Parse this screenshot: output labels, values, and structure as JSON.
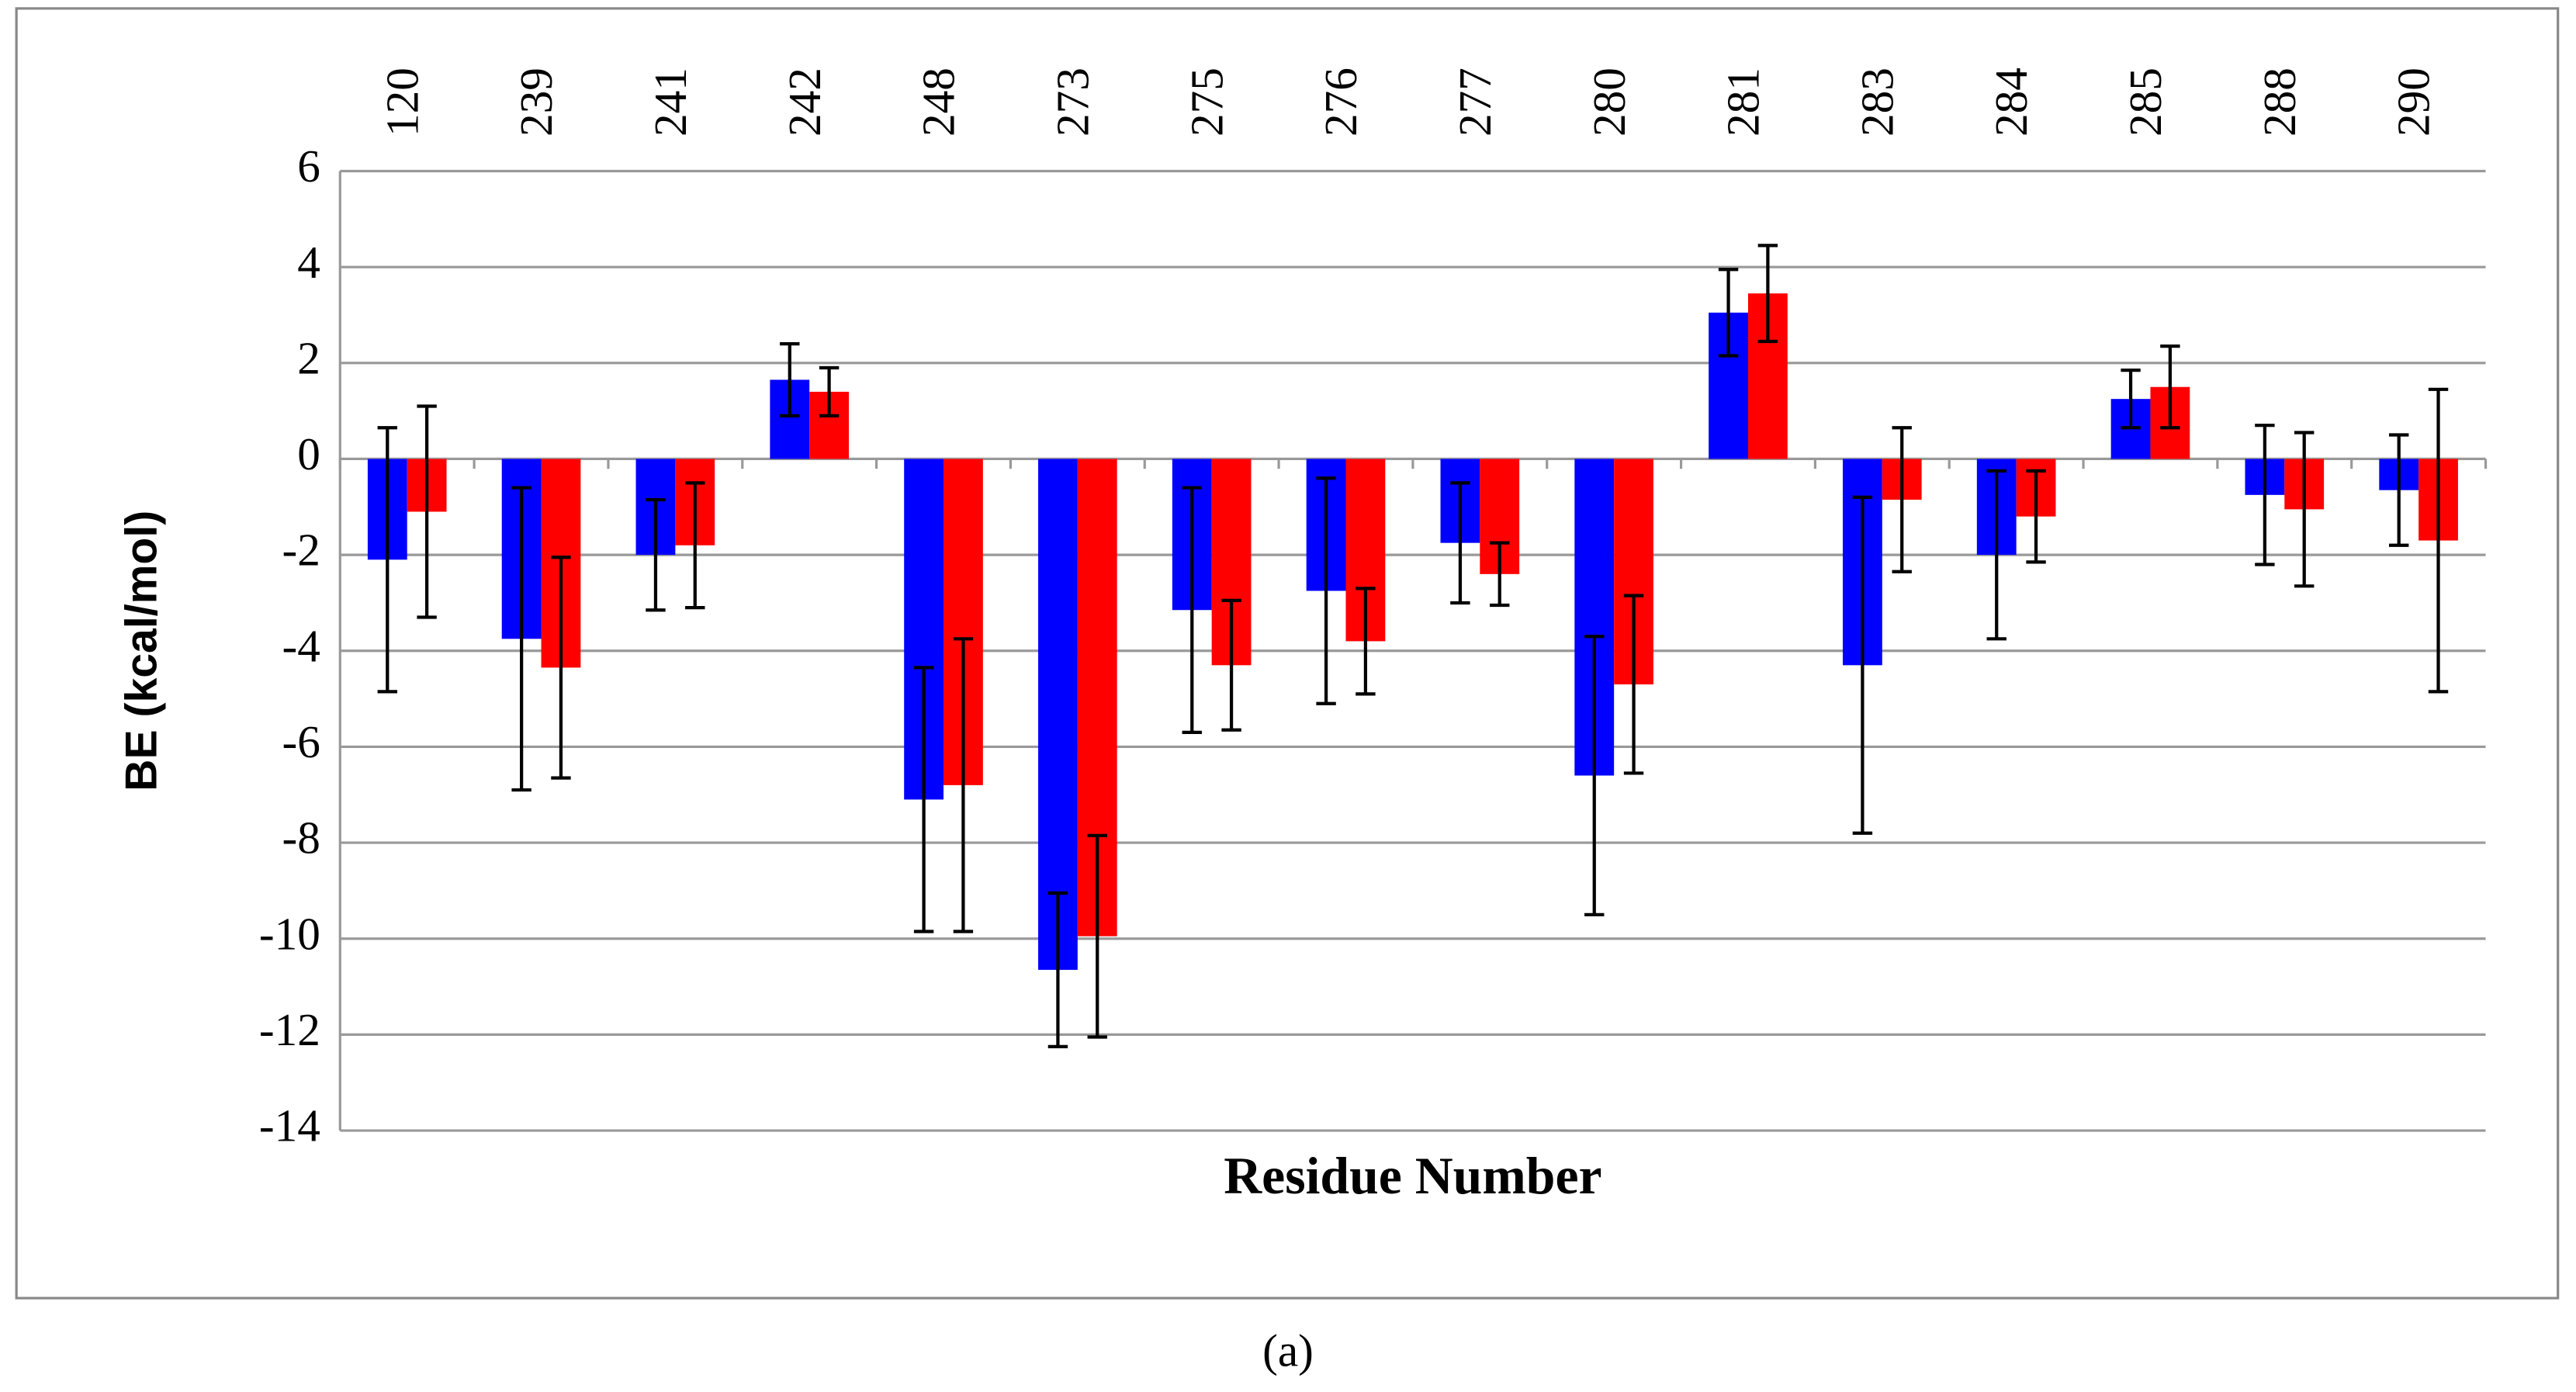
{
  "chart_data": {
    "type": "bar",
    "y_label": "BE (kcal/mol)",
    "x_label": "Residue Number",
    "caption": "(a)",
    "categories": [
      "120",
      "239",
      "241",
      "242",
      "248",
      "273",
      "275",
      "276",
      "277",
      "280",
      "281",
      "283",
      "284",
      "285",
      "288",
      "290"
    ],
    "series": [
      {
        "color": "#0000ff",
        "values": [
          -2.1,
          -3.75,
          -2.0,
          1.65,
          -7.1,
          -10.65,
          -3.15,
          -2.75,
          -1.75,
          -6.6,
          3.05,
          -4.3,
          -2.0,
          1.25,
          -0.75,
          -0.65
        ],
        "errors": [
          2.75,
          3.15,
          1.15,
          0.75,
          2.75,
          1.6,
          2.55,
          2.35,
          1.25,
          2.9,
          0.9,
          3.5,
          1.75,
          0.6,
          1.45,
          1.15
        ]
      },
      {
        "color": "#ff0000",
        "values": [
          -1.1,
          -4.35,
          -1.8,
          1.4,
          -6.8,
          -9.95,
          -4.3,
          -3.8,
          -2.4,
          -4.7,
          3.45,
          -0.85,
          -1.2,
          1.5,
          -1.05,
          -1.7
        ],
        "errors": [
          2.2,
          2.3,
          1.3,
          0.5,
          3.05,
          2.1,
          1.35,
          1.1,
          0.65,
          1.85,
          1.0,
          1.5,
          0.95,
          0.85,
          1.6,
          3.15
        ]
      }
    ],
    "ylim": [
      -14,
      6
    ],
    "yticks": [
      -14,
      -12,
      -10,
      -8,
      -6,
      -4,
      -2,
      0,
      2,
      4,
      6
    ],
    "grid": true
  }
}
